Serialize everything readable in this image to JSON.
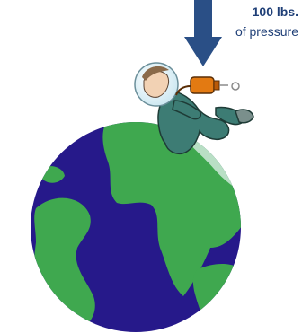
{
  "annotation": {
    "line1": "100 lbs.",
    "line2": "of pressure"
  },
  "colors": {
    "arrow": "#2a4f86",
    "ocean": "#26198a",
    "land": "#3fa84f",
    "land_highlight": "#b9dfc5",
    "suit": "#3d7c74",
    "tank": "#e37a12",
    "helmet": "#dff1f7"
  },
  "icons": [
    "down-arrow-icon",
    "astronaut-illustration",
    "earth-globe"
  ]
}
